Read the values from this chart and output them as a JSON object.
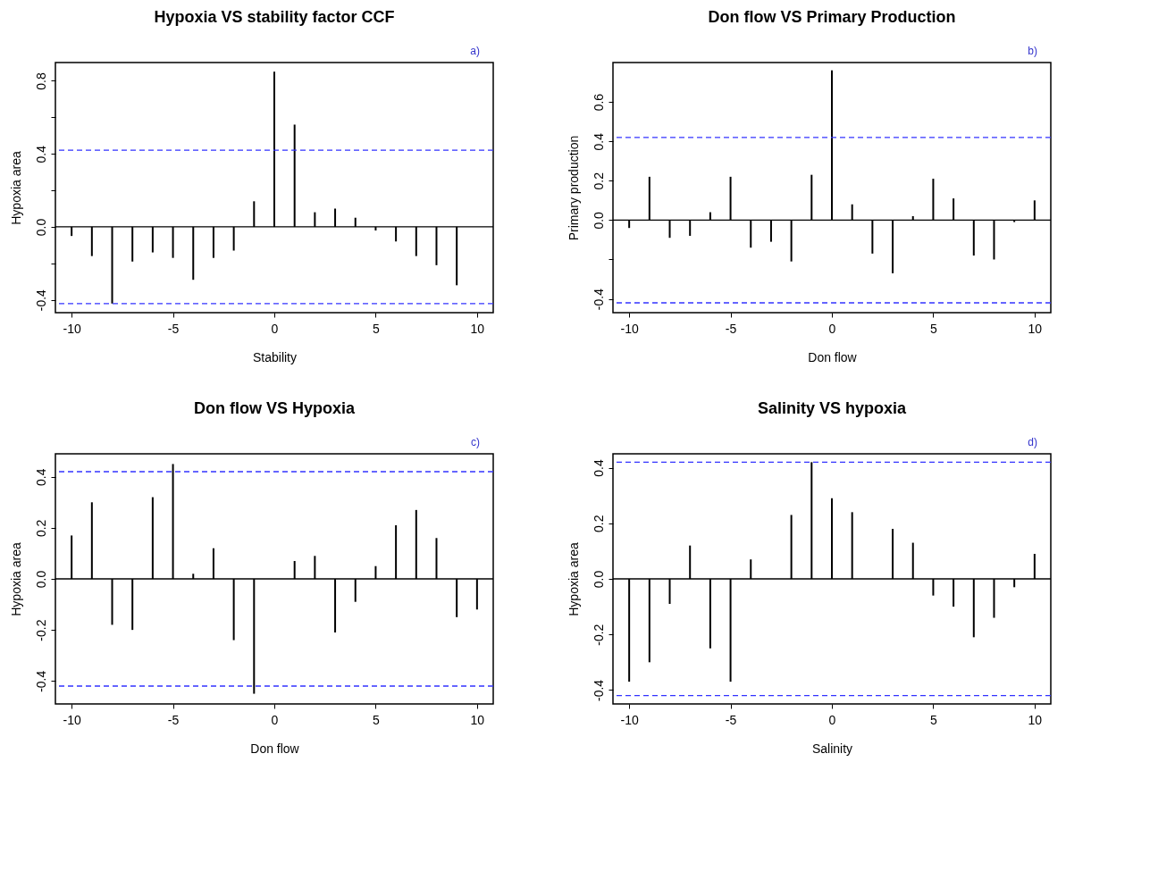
{
  "chart_data": [
    {
      "type": "bar",
      "title": "Hypoxia VS stability factor CCF",
      "xlabel": "Stability",
      "ylabel": "Hypoxia area",
      "annotations": [
        "a)"
      ],
      "x": [
        -10,
        -9,
        -8,
        -7,
        -6,
        -5,
        -4,
        -3,
        -2,
        -1,
        0,
        1,
        2,
        3,
        4,
        5,
        6,
        7,
        8,
        9
      ],
      "series": [
        {
          "color": "#000000",
          "values": [
            -0.05,
            -0.16,
            -0.42,
            -0.19,
            -0.14,
            -0.17,
            -0.29,
            -0.17,
            -0.13,
            0.14,
            0.85,
            0.56,
            0.08,
            0.1,
            0.05,
            -0.02,
            -0.08,
            -0.16,
            -0.21,
            -0.32
          ]
        }
      ],
      "xlim": [
        -10.8,
        10.8
      ],
      "ylim": [
        -0.47,
        0.9
      ],
      "xticks": [
        -10,
        -5,
        0,
        5,
        10
      ],
      "yticks": [
        -0.4,
        {
          "value": -0.2,
          "label": null
        },
        {
          "value": 0,
          "label": "0.0"
        },
        {
          "value": 0.2,
          "label": null
        },
        0.4,
        {
          "value": 0.6,
          "label": null
        },
        0.8
      ],
      "ref_lines": [
        {
          "axis": "y",
          "value": 0,
          "color": "#000000",
          "line_style": "solid"
        },
        {
          "axis": "y",
          "value": 0.42,
          "color": "#3333ff",
          "line_style": "dashed"
        },
        {
          "axis": "y",
          "value": -0.42,
          "color": "#3333ff",
          "line_style": "dashed"
        }
      ],
      "grid": false
    },
    {
      "type": "bar",
      "title": "Don flow VS Primary Production",
      "xlabel": "Don flow",
      "ylabel": "Primary production",
      "annotations": [
        "b)"
      ],
      "x": [
        -10,
        -9,
        -8,
        -7,
        -6,
        -5,
        -4,
        -3,
        -2,
        -1,
        0,
        1,
        2,
        3,
        4,
        5,
        6,
        7,
        8,
        9,
        10
      ],
      "series": [
        {
          "color": "#000000",
          "values": [
            -0.04,
            0.22,
            -0.09,
            -0.08,
            0.04,
            0.22,
            -0.14,
            -0.11,
            -0.21,
            0.23,
            0.76,
            0.08,
            -0.17,
            -0.27,
            0.02,
            0.21,
            0.11,
            -0.18,
            -0.2,
            -0.01,
            0.1
          ]
        }
      ],
      "xlim": [
        -10.8,
        10.8
      ],
      "ylim": [
        -0.47,
        0.8
      ],
      "xticks": [
        -10,
        -5,
        0,
        5,
        10
      ],
      "yticks": [
        -0.4,
        {
          "value": -0.2,
          "label": null
        },
        {
          "value": 0,
          "label": "0.0"
        },
        0.2,
        0.4,
        0.6
      ],
      "ref_lines": [
        {
          "axis": "y",
          "value": 0,
          "color": "#000000",
          "line_style": "solid"
        },
        {
          "axis": "y",
          "value": 0.42,
          "color": "#3333ff",
          "line_style": "dashed"
        },
        {
          "axis": "y",
          "value": -0.42,
          "color": "#3333ff",
          "line_style": "dashed"
        }
      ],
      "grid": false
    },
    {
      "type": "bar",
      "title": "Don flow VS Hypoxia",
      "xlabel": "Don flow",
      "ylabel": "Hypoxia area",
      "annotations": [
        "c)"
      ],
      "x": [
        -10,
        -9,
        -8,
        -7,
        -6,
        -5,
        -4,
        -3,
        -2,
        -1,
        0,
        1,
        2,
        3,
        4,
        5,
        6,
        7,
        8,
        9,
        10
      ],
      "series": [
        {
          "color": "#000000",
          "values": [
            0.17,
            0.3,
            -0.18,
            -0.2,
            0.32,
            0.45,
            0.02,
            0.12,
            -0.24,
            -0.45,
            null,
            0.07,
            0.09,
            -0.21,
            -0.09,
            0.05,
            0.21,
            0.27,
            0.16,
            -0.15,
            -0.12
          ]
        }
      ],
      "xlim": [
        -10.8,
        10.8
      ],
      "ylim": [
        -0.49,
        0.49
      ],
      "xticks": [
        -10,
        -5,
        0,
        5,
        10
      ],
      "yticks": [
        -0.4,
        -0.2,
        {
          "value": 0,
          "label": "0.0"
        },
        0.2,
        0.4
      ],
      "ref_lines": [
        {
          "axis": "y",
          "value": 0,
          "color": "#000000",
          "line_style": "solid"
        },
        {
          "axis": "y",
          "value": 0.42,
          "color": "#3333ff",
          "line_style": "dashed"
        },
        {
          "axis": "y",
          "value": -0.42,
          "color": "#3333ff",
          "line_style": "dashed"
        }
      ],
      "grid": false
    },
    {
      "type": "bar",
      "title": "Salinity VS hypoxia",
      "xlabel": "Salinity",
      "ylabel": "Hypoxia area",
      "annotations": [
        "d)"
      ],
      "x": [
        -10,
        -9,
        -8,
        -7,
        -6,
        -5,
        -4,
        -3,
        -2,
        -1,
        0,
        1,
        2,
        3,
        4,
        5,
        6,
        7,
        8,
        9,
        10
      ],
      "series": [
        {
          "color": "#000000",
          "values": [
            -0.37,
            -0.3,
            -0.09,
            0.12,
            -0.25,
            -0.37,
            0.07,
            0.0,
            0.23,
            0.42,
            0.29,
            0.24,
            null,
            0.18,
            0.13,
            -0.06,
            -0.1,
            -0.21,
            -0.14,
            -0.03,
            0.09
          ]
        }
      ],
      "xlim": [
        -10.8,
        10.8
      ],
      "ylim": [
        -0.45,
        0.45
      ],
      "xticks": [
        -10,
        -5,
        0,
        5,
        10
      ],
      "yticks": [
        -0.4,
        -0.2,
        {
          "value": 0,
          "label": "0.0"
        },
        0.2,
        0.4
      ],
      "ref_lines": [
        {
          "axis": "y",
          "value": 0,
          "color": "#000000",
          "line_style": "solid"
        },
        {
          "axis": "y",
          "value": 0.42,
          "color": "#3333ff",
          "line_style": "dashed"
        },
        {
          "axis": "y",
          "value": -0.42,
          "color": "#3333ff",
          "line_style": "dashed"
        }
      ],
      "grid": false
    }
  ]
}
